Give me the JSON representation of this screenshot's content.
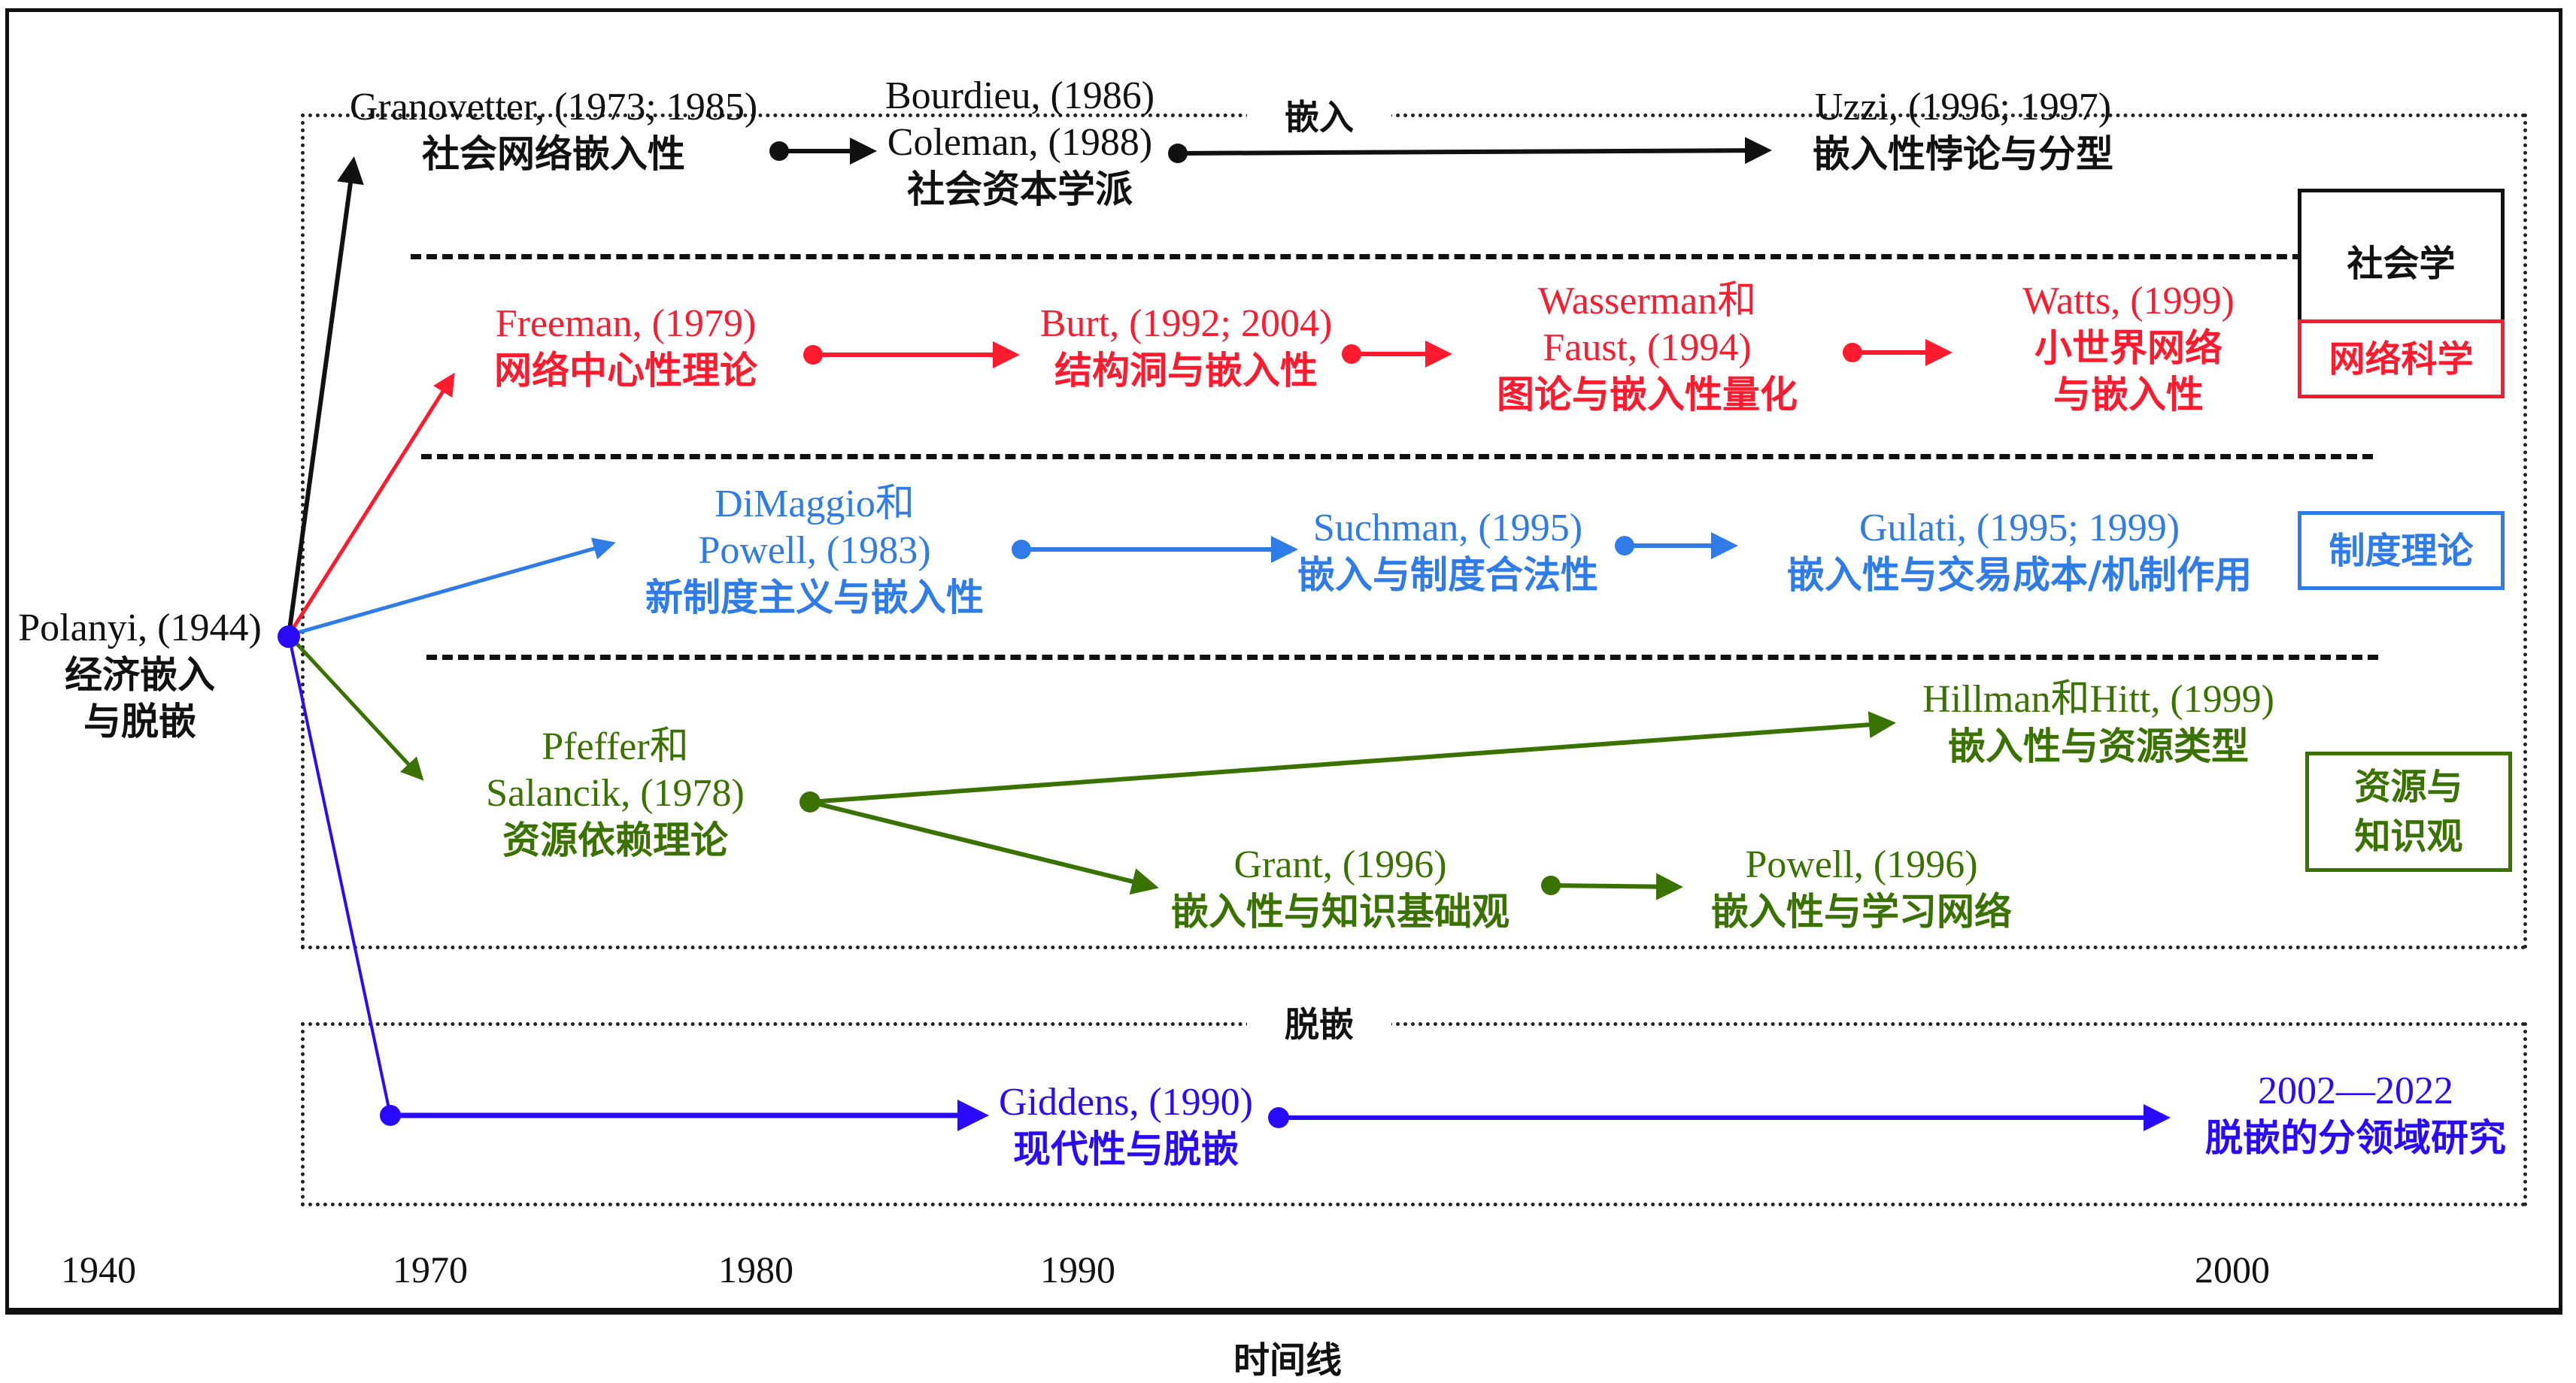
{
  "colors": {
    "sociology": "#111111",
    "network": "#ff1a2e",
    "institution": "#2f7be8",
    "resource": "#3a7200",
    "disembed": "#2a0aff",
    "origin": "#2a0aff"
  },
  "sections": {
    "embedding_label": "嵌入",
    "disembedding_label": "脱嵌"
  },
  "origin": {
    "en": "Polanyi, (1944)",
    "zh_line1": "经济嵌入",
    "zh_line2": "与脱嵌"
  },
  "disciplines": {
    "sociology": "社会学",
    "network": "网络科学",
    "institution": "制度理论",
    "resource_line1": "资源与",
    "resource_line2": "知识观"
  },
  "nodes": {
    "granovetter": {
      "en": "Granovetter, (1973; 1985)",
      "zh": "社会网络嵌入性"
    },
    "bourdieu": {
      "en1": "Bourdieu, (1986)",
      "en2": "Coleman, (1988)",
      "zh": "社会资本学派"
    },
    "uzzi": {
      "en": "Uzzi, (1996; 1997)",
      "zh": "嵌入性悖论与分型"
    },
    "freeman": {
      "en": "Freeman, (1979)",
      "zh": "网络中心性理论"
    },
    "burt": {
      "en": "Burt, (1992; 2004)",
      "zh": "结构洞与嵌入性"
    },
    "wasserman": {
      "en1": "Wasserman和",
      "en2": "Faust, (1994)",
      "zh": "图论与嵌入性量化"
    },
    "watts": {
      "en": "Watts, (1999)",
      "zh1": "小世界网络",
      "zh2": "与嵌入性"
    },
    "dimaggio": {
      "en1": "DiMaggio和",
      "en2": "Powell, (1983)",
      "zh": "新制度主义与嵌入性"
    },
    "suchman": {
      "en": "Suchman, (1995)",
      "zh": "嵌入与制度合法性"
    },
    "gulati": {
      "en": "Gulati, (1995; 1999)",
      "zh": "嵌入性与交易成本/机制作用"
    },
    "pfeffer": {
      "en1": "Pfeffer和",
      "en2": "Salancik, (1978)",
      "zh": "资源依赖理论"
    },
    "hillman": {
      "en": "Hillman和Hitt, (1999)",
      "zh": "嵌入性与资源类型"
    },
    "grant": {
      "en": "Grant, (1996)",
      "zh": "嵌入性与知识基础观"
    },
    "powell96": {
      "en": "Powell, (1996)",
      "zh": "嵌入性与学习网络"
    },
    "giddens": {
      "en": "Giddens, (1990)",
      "zh": "现代性与脱嵌"
    },
    "recent": {
      "en": "2002—2022",
      "zh": "脱嵌的分领域研究"
    }
  },
  "timeline": {
    "ticks": [
      "1940",
      "1970",
      "1980",
      "1990",
      "2000"
    ],
    "title": "时间线"
  },
  "edges": [
    {
      "from": "Polanyi",
      "to": "Granovetter",
      "stream": "sociology"
    },
    {
      "from": "Granovetter",
      "to": "Bourdieu/Coleman",
      "stream": "sociology"
    },
    {
      "from": "Bourdieu/Coleman",
      "to": "Uzzi",
      "stream": "sociology"
    },
    {
      "from": "Polanyi",
      "to": "Freeman",
      "stream": "network"
    },
    {
      "from": "Freeman",
      "to": "Burt",
      "stream": "network"
    },
    {
      "from": "Burt",
      "to": "Wasserman/Faust",
      "stream": "network"
    },
    {
      "from": "Wasserman/Faust",
      "to": "Watts",
      "stream": "network"
    },
    {
      "from": "Polanyi",
      "to": "DiMaggio/Powell",
      "stream": "institution"
    },
    {
      "from": "DiMaggio/Powell",
      "to": "Suchman",
      "stream": "institution"
    },
    {
      "from": "Suchman",
      "to": "Gulati",
      "stream": "institution"
    },
    {
      "from": "Polanyi",
      "to": "Pfeffer/Salancik",
      "stream": "resource"
    },
    {
      "from": "Pfeffer/Salancik",
      "to": "Hillman/Hitt",
      "stream": "resource"
    },
    {
      "from": "Pfeffer/Salancik",
      "to": "Grant",
      "stream": "resource"
    },
    {
      "from": "Grant",
      "to": "Powell 1996",
      "stream": "resource"
    },
    {
      "from": "Polanyi",
      "to": "1969 disembedding point",
      "stream": "disembed"
    },
    {
      "from": "1969 disembedding point",
      "to": "Giddens",
      "stream": "disembed"
    },
    {
      "from": "Giddens",
      "to": "2002—2022",
      "stream": "disembed"
    }
  ]
}
